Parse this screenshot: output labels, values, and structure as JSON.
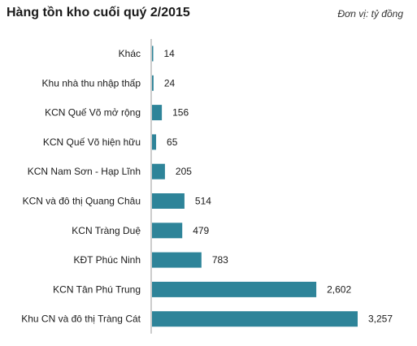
{
  "header": {
    "title": "Hàng tồn kho cuối quý 2/2015",
    "unit": "Đơn vị: tỷ đồng"
  },
  "chart_data": {
    "type": "bar",
    "orientation": "horizontal",
    "title": "Hàng tồn kho cuối quý 2/2015",
    "categories": [
      "Khác",
      "Khu nhà thu nhập thấp",
      "KCN Quế Võ mở rộng",
      "KCN Quế Võ hiện hữu",
      "KCN Nam Sơn - Hạp Lĩnh",
      "KCN và đô thị Quang Châu",
      "KCN Tràng Duệ",
      "KĐT Phúc Ninh",
      "KCN Tân Phú Trung",
      "Khu CN và đô thị Tràng Cát"
    ],
    "values": [
      14,
      24,
      156,
      65,
      205,
      514,
      479,
      783,
      2602,
      3257
    ],
    "value_labels": [
      "14",
      "24",
      "156",
      "65",
      "205",
      "514",
      "479",
      "783",
      "2,602",
      "3,257"
    ],
    "xlim": [
      0,
      3257
    ],
    "grid": false,
    "bar_color": "#2e8499"
  }
}
